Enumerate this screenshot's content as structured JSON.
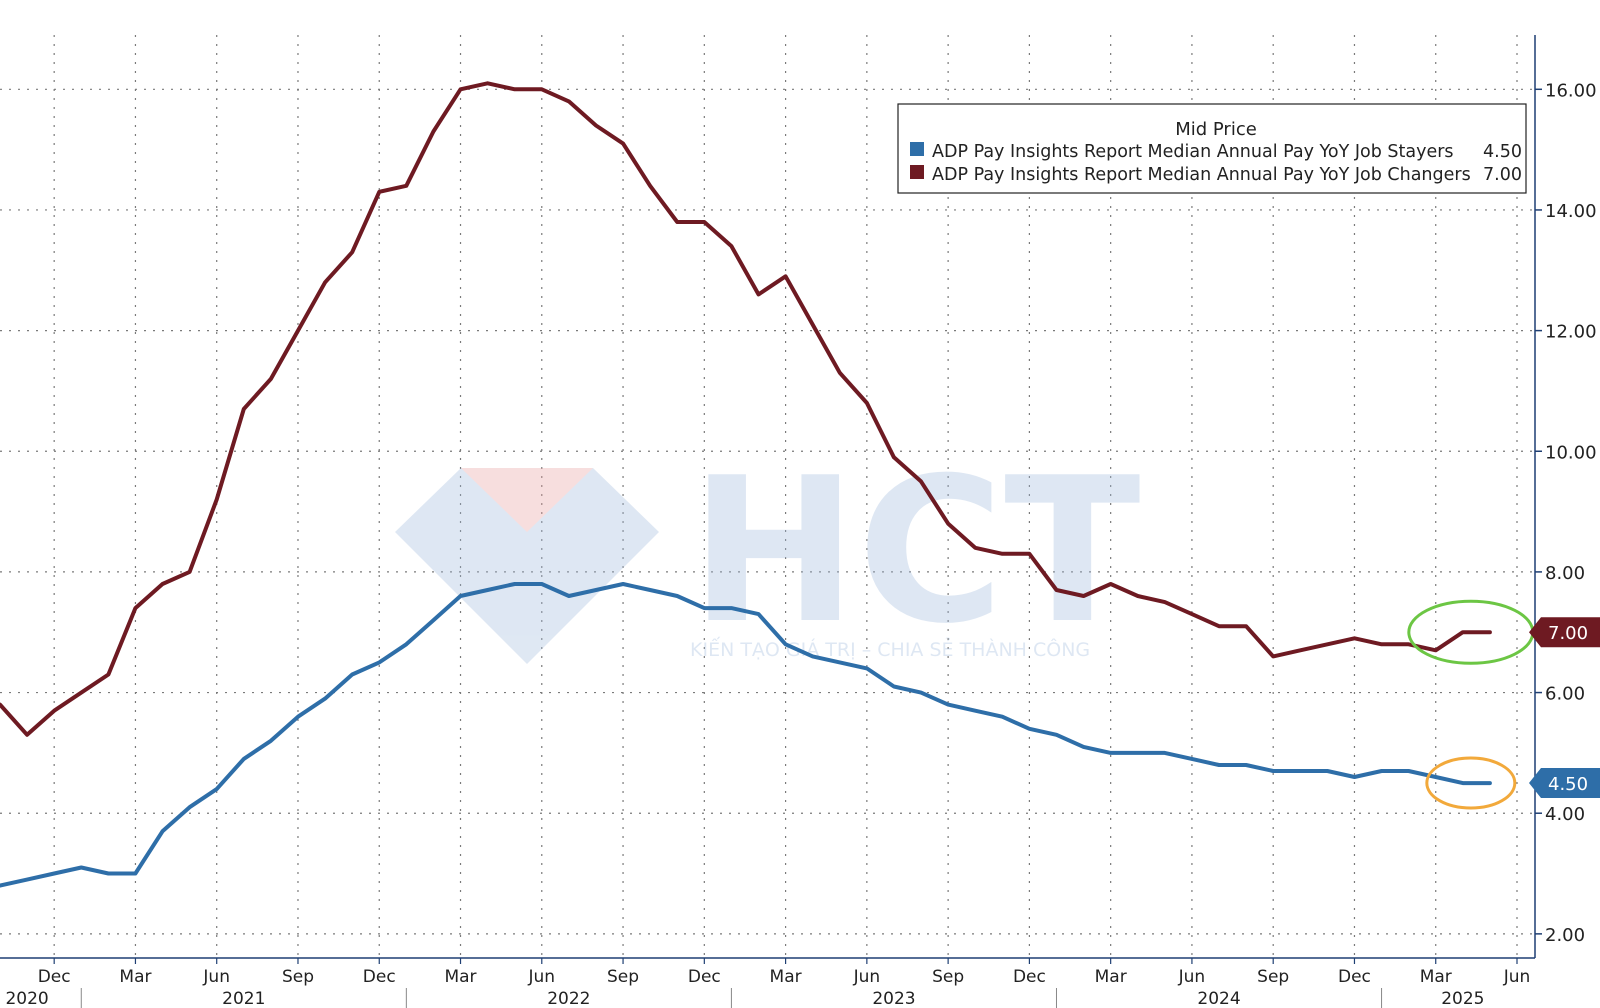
{
  "chart_data": {
    "type": "line",
    "legend": {
      "title": "Mid Price",
      "position": "top-right",
      "entries": [
        {
          "label": "ADP Pay Insights Report Median Annual Pay YoY Job Stayers",
          "value": "4.50"
        },
        {
          "label": "ADP Pay Insights Report Median Annual Pay YoY Job Changers",
          "value": "7.00"
        }
      ]
    },
    "y_ticks": [
      "2.00",
      "4.00",
      "6.00",
      "8.00",
      "10.00",
      "12.00",
      "14.00",
      "16.00"
    ],
    "ylim": [
      1.6,
      16.9
    ],
    "y_axis_side": "right",
    "grid": true,
    "x_axis": {
      "months": [
        {
          "label": "Dec",
          "date": "2020-12"
        },
        {
          "label": "Mar",
          "date": "2021-03"
        },
        {
          "label": "Jun",
          "date": "2021-06"
        },
        {
          "label": "Sep",
          "date": "2021-09"
        },
        {
          "label": "Dec",
          "date": "2021-12"
        },
        {
          "label": "Mar",
          "date": "2022-03"
        },
        {
          "label": "Jun",
          "date": "2022-06"
        },
        {
          "label": "Sep",
          "date": "2022-09"
        },
        {
          "label": "Dec",
          "date": "2022-12"
        },
        {
          "label": "Mar",
          "date": "2023-03"
        },
        {
          "label": "Jun",
          "date": "2023-06"
        },
        {
          "label": "Sep",
          "date": "2023-09"
        },
        {
          "label": "Dec",
          "date": "2023-12"
        },
        {
          "label": "Mar",
          "date": "2024-03"
        },
        {
          "label": "Jun",
          "date": "2024-06"
        },
        {
          "label": "Sep",
          "date": "2024-09"
        },
        {
          "label": "Dec",
          "date": "2024-12"
        },
        {
          "label": "Mar",
          "date": "2025-03"
        },
        {
          "label": "Jun",
          "date": "2025-06"
        }
      ],
      "years": [
        {
          "label": "2020",
          "date": "2020-11"
        },
        {
          "label": "2021",
          "date": "2021-07"
        },
        {
          "label": "2022",
          "date": "2022-07"
        },
        {
          "label": "2023",
          "date": "2023-07"
        },
        {
          "label": "2024",
          "date": "2024-07"
        },
        {
          "label": "2025",
          "date": "2025-04"
        }
      ]
    },
    "x_range": [
      "2020-10",
      "2025-06"
    ],
    "series": [
      {
        "name": "ADP Pay Insights Report Median Annual Pay YoY Job Changers",
        "color": "#6e1a22",
        "last_value": "7.00",
        "highlight_color": "#6cc644",
        "points": [
          [
            "2020-10",
            5.8
          ],
          [
            "2020-11",
            5.3
          ],
          [
            "2020-12",
            5.7
          ],
          [
            "2021-01",
            6.0
          ],
          [
            "2021-02",
            6.3
          ],
          [
            "2021-03",
            7.4
          ],
          [
            "2021-04",
            7.8
          ],
          [
            "2021-05",
            8.0
          ],
          [
            "2021-06",
            9.2
          ],
          [
            "2021-07",
            10.7
          ],
          [
            "2021-08",
            11.2
          ],
          [
            "2021-09",
            12.0
          ],
          [
            "2021-10",
            12.8
          ],
          [
            "2021-11",
            13.3
          ],
          [
            "2021-12",
            14.3
          ],
          [
            "2022-01",
            14.4
          ],
          [
            "2022-02",
            15.3
          ],
          [
            "2022-03",
            16.0
          ],
          [
            "2022-04",
            16.1
          ],
          [
            "2022-05",
            16.0
          ],
          [
            "2022-06",
            16.0
          ],
          [
            "2022-07",
            15.8
          ],
          [
            "2022-08",
            15.4
          ],
          [
            "2022-09",
            15.1
          ],
          [
            "2022-10",
            14.4
          ],
          [
            "2022-11",
            13.8
          ],
          [
            "2022-12",
            13.8
          ],
          [
            "2023-01",
            13.4
          ],
          [
            "2023-02",
            12.6
          ],
          [
            "2023-03",
            12.9
          ],
          [
            "2023-04",
            12.1
          ],
          [
            "2023-05",
            11.3
          ],
          [
            "2023-06",
            10.8
          ],
          [
            "2023-07",
            9.9
          ],
          [
            "2023-08",
            9.5
          ],
          [
            "2023-09",
            8.8
          ],
          [
            "2023-10",
            8.4
          ],
          [
            "2023-11",
            8.3
          ],
          [
            "2023-12",
            8.3
          ],
          [
            "2024-01",
            7.7
          ],
          [
            "2024-02",
            7.6
          ],
          [
            "2024-03",
            7.8
          ],
          [
            "2024-04",
            7.6
          ],
          [
            "2024-05",
            7.5
          ],
          [
            "2024-06",
            7.3
          ],
          [
            "2024-07",
            7.1
          ],
          [
            "2024-08",
            7.1
          ],
          [
            "2024-09",
            6.6
          ],
          [
            "2024-10",
            6.7
          ],
          [
            "2024-11",
            6.8
          ],
          [
            "2024-12",
            6.9
          ],
          [
            "2025-01",
            6.8
          ],
          [
            "2025-02",
            6.8
          ],
          [
            "2025-03",
            6.7
          ],
          [
            "2025-04",
            7.0
          ],
          [
            "2025-05",
            7.0
          ]
        ]
      },
      {
        "name": "ADP Pay Insights Report Median Annual Pay YoY Job Stayers",
        "color": "#2e6ea8",
        "last_value": "4.50",
        "highlight_color": "#f2a93b",
        "points": [
          [
            "2020-10",
            2.8
          ],
          [
            "2020-11",
            2.9
          ],
          [
            "2020-12",
            3.0
          ],
          [
            "2021-01",
            3.1
          ],
          [
            "2021-02",
            3.0
          ],
          [
            "2021-03",
            3.0
          ],
          [
            "2021-04",
            3.7
          ],
          [
            "2021-05",
            4.1
          ],
          [
            "2021-06",
            4.4
          ],
          [
            "2021-07",
            4.9
          ],
          [
            "2021-08",
            5.2
          ],
          [
            "2021-09",
            5.6
          ],
          [
            "2021-10",
            5.9
          ],
          [
            "2021-11",
            6.3
          ],
          [
            "2021-12",
            6.5
          ],
          [
            "2022-01",
            6.8
          ],
          [
            "2022-02",
            7.2
          ],
          [
            "2022-03",
            7.6
          ],
          [
            "2022-04",
            7.7
          ],
          [
            "2022-05",
            7.8
          ],
          [
            "2022-06",
            7.8
          ],
          [
            "2022-07",
            7.6
          ],
          [
            "2022-08",
            7.7
          ],
          [
            "2022-09",
            7.8
          ],
          [
            "2022-10",
            7.7
          ],
          [
            "2022-11",
            7.6
          ],
          [
            "2022-12",
            7.4
          ],
          [
            "2023-01",
            7.4
          ],
          [
            "2023-02",
            7.3
          ],
          [
            "2023-03",
            6.8
          ],
          [
            "2023-04",
            6.6
          ],
          [
            "2023-05",
            6.5
          ],
          [
            "2023-06",
            6.4
          ],
          [
            "2023-07",
            6.1
          ],
          [
            "2023-08",
            6.0
          ],
          [
            "2023-09",
            5.8
          ],
          [
            "2023-10",
            5.7
          ],
          [
            "2023-11",
            5.6
          ],
          [
            "2023-12",
            5.4
          ],
          [
            "2024-01",
            5.3
          ],
          [
            "2024-02",
            5.1
          ],
          [
            "2024-03",
            5.0
          ],
          [
            "2024-04",
            5.0
          ],
          [
            "2024-05",
            5.0
          ],
          [
            "2024-06",
            4.9
          ],
          [
            "2024-07",
            4.8
          ],
          [
            "2024-08",
            4.8
          ],
          [
            "2024-09",
            4.7
          ],
          [
            "2024-10",
            4.7
          ],
          [
            "2024-11",
            4.7
          ],
          [
            "2024-12",
            4.6
          ],
          [
            "2025-01",
            4.7
          ],
          [
            "2025-02",
            4.7
          ],
          [
            "2025-03",
            4.6
          ],
          [
            "2025-04",
            4.5
          ],
          [
            "2025-05",
            4.5
          ]
        ]
      }
    ]
  },
  "watermark": {
    "logo_text": "HCT",
    "tagline": "KIẾN TẠO GIÁ TRỊ – CHIA SẺ THÀNH CÔNG"
  }
}
